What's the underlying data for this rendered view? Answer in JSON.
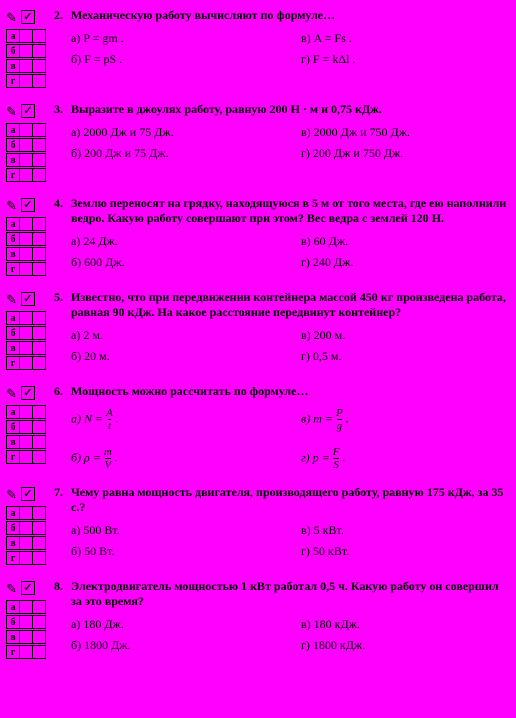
{
  "background_color": "#ff00ff",
  "text_color": "#000000",
  "question_font_weight": "bold",
  "row_labels": [
    "а",
    "б",
    "в",
    "г"
  ],
  "questions": [
    {
      "num": "2.",
      "text": "Механическую работу вычисляют по формуле…",
      "a": "а)  P = gm .",
      "b": "б)  F = pS .",
      "v": "в)  A = Fs .",
      "g": "г)  F = kΔl ."
    },
    {
      "num": "3.",
      "text": "Выразите в джоулях работу, равную 200 Н · м и 0,75 кДж.",
      "a": "а)  2000 Дж и 75 Дж.",
      "b": "б)  200 Дж и 75 Дж.",
      "v": "в)  2000 Дж и 750 Дж.",
      "g": "г)  200 Дж и 750 Дж."
    },
    {
      "num": "4.",
      "text": "Землю переносят на грядку, находящуюся в 5 м от того места, где ею наполнили ведро. Какую работу совершают при этом? Вес ведра с землей 120 Н.",
      "a": "а)  24 Дж.",
      "b": "б)  600 Дж.",
      "v": "в)  60 Дж.",
      "g": "г)  240 Дж."
    },
    {
      "num": "5.",
      "text": "Известно, что при передвижении контейнера массой 450 кг произведена работа, равная 90 кДж. На какое расстояние передвинут контейнер?",
      "a": "а)  2 м.",
      "b": "б)  20 м.",
      "v": "в)  200 м.",
      "g": "г)  0,5 м."
    },
    {
      "num": "6.",
      "text": "Мощность можно рассчитать по формуле…",
      "a_pre": "а)  N = ",
      "a_num": "A",
      "a_den": "t",
      "a_post": " .",
      "b_pre": "б)  ρ = ",
      "b_num": "m",
      "b_den": "V",
      "b_post": " .",
      "v_pre": "в)  m = ",
      "v_num": "P",
      "v_den": "g",
      "v_post": " .",
      "g_pre": "г)  p = ",
      "g_num": "F",
      "g_den": "S",
      "g_post": " ."
    },
    {
      "num": "7.",
      "text": "Чему равна мощность двигателя, производящего работу, равную 175 кДж, за 35 с.?",
      "a": "а)  500 Вт.",
      "b": "б)  50 Вт.",
      "v": "в)  5 кВт.",
      "g": "г)  50 кВт."
    },
    {
      "num": "8.",
      "text": "Электродвигатель мощностью 1 кВт работал 0,5 ч. Какую работу он совершил за это время?",
      "a": "а)  180 Дж.",
      "b": "б)  1800 Дж.",
      "v": "в)  180 кДж.",
      "g": "г)  1800 кДж."
    }
  ]
}
